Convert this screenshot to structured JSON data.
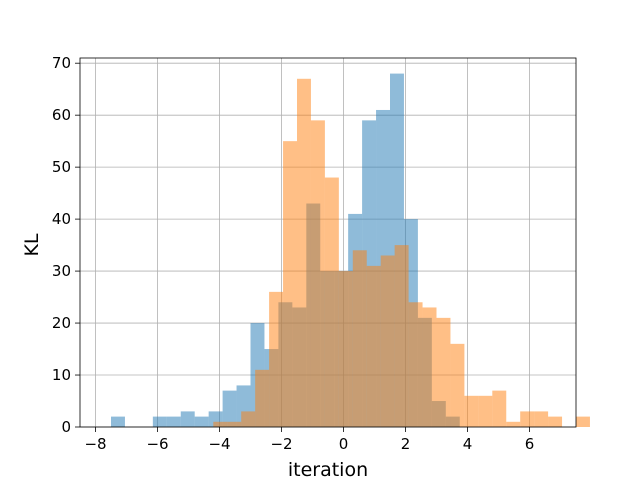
{
  "chart_data": {
    "type": "histogram",
    "xlabel": "iteration",
    "ylabel": "KL",
    "xlim": [
      -8.5,
      7.5
    ],
    "ylim": [
      0,
      71
    ],
    "xticks": [
      -8,
      -6,
      -4,
      -2,
      0,
      2,
      4,
      6
    ],
    "yticks": [
      0,
      10,
      20,
      30,
      40,
      50,
      60,
      70
    ],
    "xtick_labels": [
      "−8",
      "−6",
      "−4",
      "−2",
      "0",
      "2",
      "4",
      "6"
    ],
    "ytick_labels": [
      "0",
      "10",
      "20",
      "30",
      "40",
      "50",
      "60",
      "70"
    ],
    "grid": true,
    "series": [
      {
        "color": "#1f77b4",
        "alpha": 0.5,
        "bin_start": -7.5,
        "bin_width": 0.45,
        "counts": [
          2,
          0,
          0,
          2,
          2,
          3,
          2,
          3,
          7,
          8,
          20,
          15,
          24,
          23,
          43,
          30,
          30,
          41,
          59,
          61,
          68,
          40,
          21,
          5,
          2,
          0,
          0,
          0,
          0,
          0,
          0,
          0,
          0
        ]
      },
      {
        "color": "#ff7f0e",
        "alpha": 0.5,
        "bin_start": -4.2,
        "bin_width": 0.45,
        "counts": [
          1,
          1,
          3,
          11,
          26,
          55,
          67,
          59,
          48,
          30,
          34,
          31,
          33,
          35,
          24,
          23,
          21,
          16,
          6,
          6,
          7,
          1,
          3,
          3,
          2,
          0,
          2
        ]
      }
    ]
  }
}
